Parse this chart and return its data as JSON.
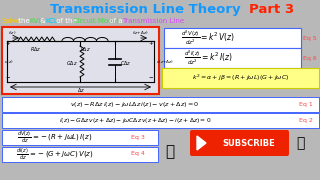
{
  "bg_color": "#b8b8b8",
  "title_color": "#1199ff",
  "title_text": "Transmission Line Theory ",
  "part3_color": "#ff2200",
  "part3_text": "Part 3",
  "subtitle_items": [
    [
      "Solve",
      "#ffcc00"
    ],
    [
      " the ",
      "#ffffff"
    ],
    [
      "KVL",
      "#44dd44"
    ],
    [
      " & ",
      "#ffffff"
    ],
    [
      "KCL",
      "#00ccff"
    ],
    [
      " of the ",
      "#ffffff"
    ],
    [
      "Circuit Model",
      "#44dd44"
    ],
    [
      " of a ",
      "#ffffff"
    ],
    [
      "Transmission Line",
      "#dd44ff"
    ]
  ],
  "circuit_box_edge": "#ee2200",
  "circuit_bg": "#e0e0ea",
  "eq_box_bg": "#ffffff",
  "eq_box_edge": "#4466ff",
  "eq_label_color": "#ff4444",
  "eq1_label": "Eq 1",
  "eq2_label": "Eq 2",
  "eq3_label": "Eq 3",
  "eq4_label": "Eq 4",
  "eq5_label": "Eq 5",
  "eq6_label": "Eq 6",
  "row_eq_bg": "#f0f0ff",
  "row_eq_edge": "#4466ff",
  "k2_bg": "#ffff88",
  "k2_edge": "#cccc00",
  "sub_bg": "#ee2200",
  "sub_text": "SUBSCRIBE"
}
